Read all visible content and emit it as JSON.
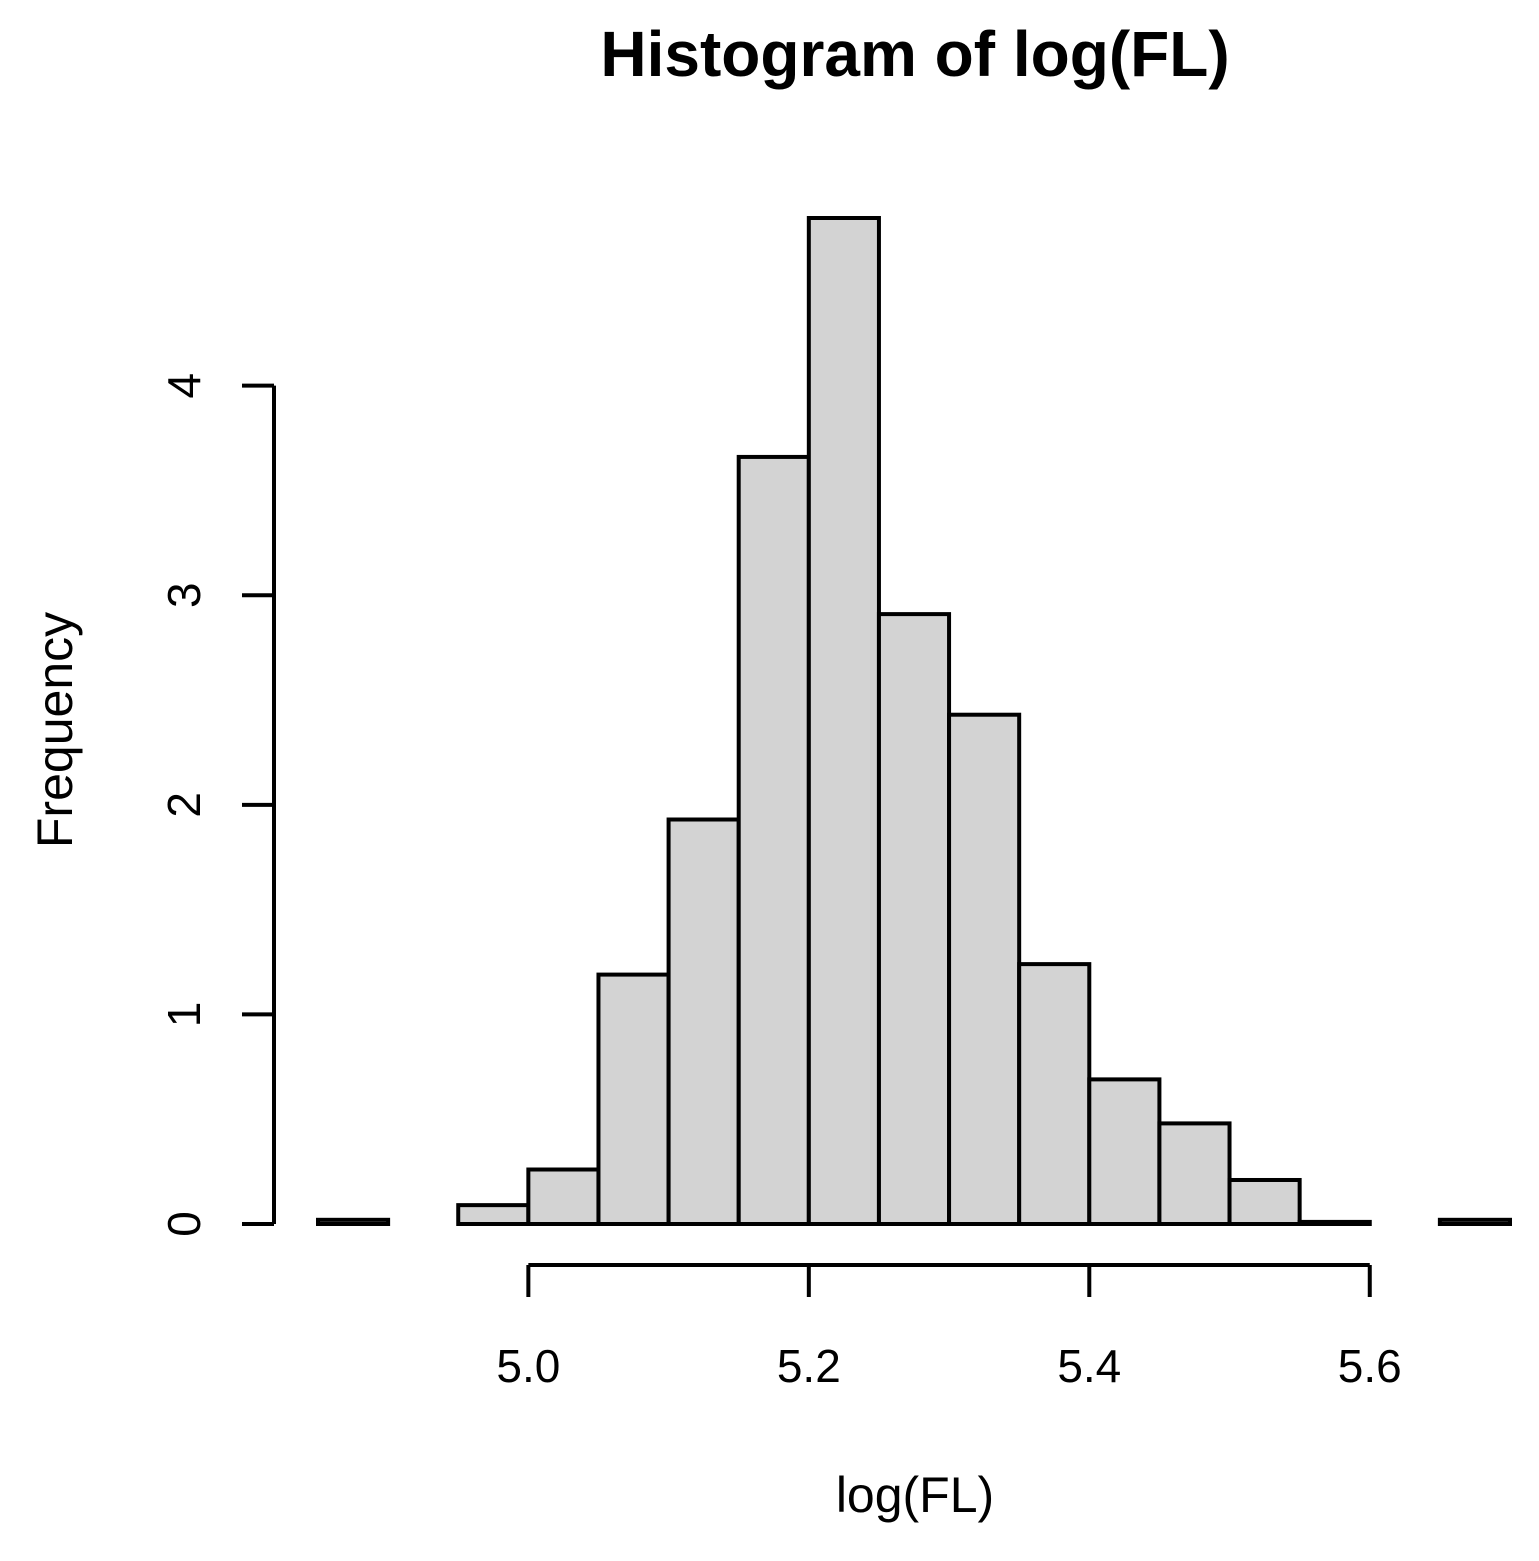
{
  "chart_data": {
    "type": "bar",
    "title": "Histogram of log(FL)",
    "xlabel": "log(FL)",
    "ylabel": "Frequency",
    "x_ticks": [
      5.0,
      5.2,
      5.4,
      5.6
    ],
    "x_tick_labels": [
      "5.0",
      "5.2",
      "5.4",
      "5.6"
    ],
    "y_ticks": [
      0,
      1,
      2,
      3,
      4
    ],
    "y_tick_labels": [
      "0",
      "1",
      "2",
      "3",
      "4"
    ],
    "xlim": [
      4.85,
      5.7
    ],
    "ylim": [
      0,
      4.8
    ],
    "bin_width": 0.05,
    "bins": [
      {
        "start": 4.85,
        "value": 0.02
      },
      {
        "start": 4.9,
        "value": 0.0
      },
      {
        "start": 4.95,
        "value": 0.09
      },
      {
        "start": 5.0,
        "value": 0.26
      },
      {
        "start": 5.05,
        "value": 1.19
      },
      {
        "start": 5.1,
        "value": 1.93
      },
      {
        "start": 5.15,
        "value": 3.66
      },
      {
        "start": 5.2,
        "value": 4.8
      },
      {
        "start": 5.25,
        "value": 2.91
      },
      {
        "start": 5.3,
        "value": 2.43
      },
      {
        "start": 5.35,
        "value": 1.24
      },
      {
        "start": 5.4,
        "value": 0.69
      },
      {
        "start": 5.45,
        "value": 0.48
      },
      {
        "start": 5.5,
        "value": 0.21
      },
      {
        "start": 5.55,
        "value": 0.01
      },
      {
        "start": 5.6,
        "value": 0.0
      },
      {
        "start": 5.65,
        "value": 0.02
      }
    ],
    "grid": false,
    "legend": "none"
  }
}
